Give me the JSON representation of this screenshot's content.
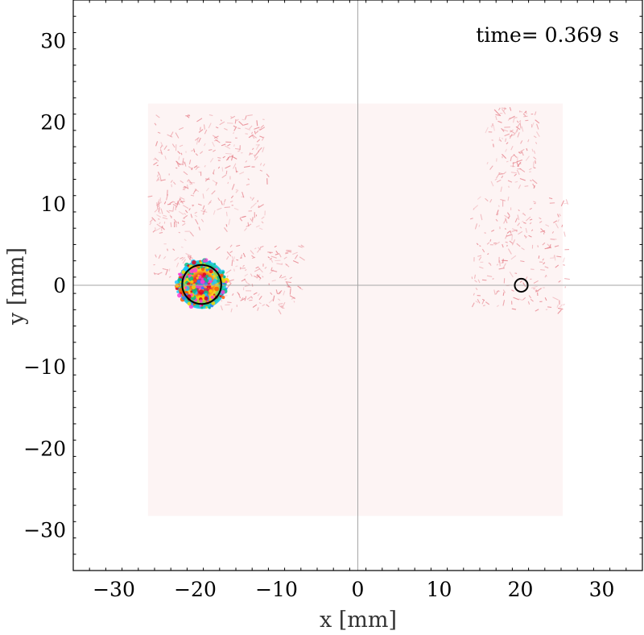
{
  "chart_data": {
    "type": "scatter",
    "title": "",
    "annotation": "time= 0.369 s",
    "xlabel": "x [mm]",
    "ylabel": "y [mm]",
    "xlim": [
      -35,
      35
    ],
    "ylim": [
      -35,
      35
    ],
    "xticks": [
      -30,
      -20,
      -10,
      0,
      10,
      20,
      30
    ],
    "yticks": [
      -30,
      -20,
      -10,
      0,
      10,
      20,
      30
    ],
    "xtick_labels": [
      "−30",
      "−20",
      "−10",
      "0",
      "10",
      "20",
      "30"
    ],
    "ytick_labels": [
      "−30",
      "−20",
      "−10",
      "0",
      "10",
      "20",
      "30"
    ],
    "minor_step": 2,
    "crosshair_at": [
      0,
      0
    ],
    "grid": false,
    "field_region": {
      "x": [
        -25.8,
        25.2
      ],
      "y": [
        -28.3,
        22.3
      ]
    },
    "circles": [
      {
        "name": "left-body",
        "cx": -19.2,
        "cy": 0.1,
        "r": 2.4
      },
      {
        "name": "right-body",
        "cx": 20.1,
        "cy": 0.0,
        "r": 0.8
      }
    ],
    "colors": {
      "field_background": "#fdf4f4",
      "wake": "#e3737e",
      "crosshair": "#a6a6a6",
      "vortex_palette": [
        "#e6001c",
        "#00c08a",
        "#2a7fff",
        "#ff5a00",
        "#ffd400",
        "#ff3bd6",
        "#1cc7ff"
      ]
    }
  }
}
